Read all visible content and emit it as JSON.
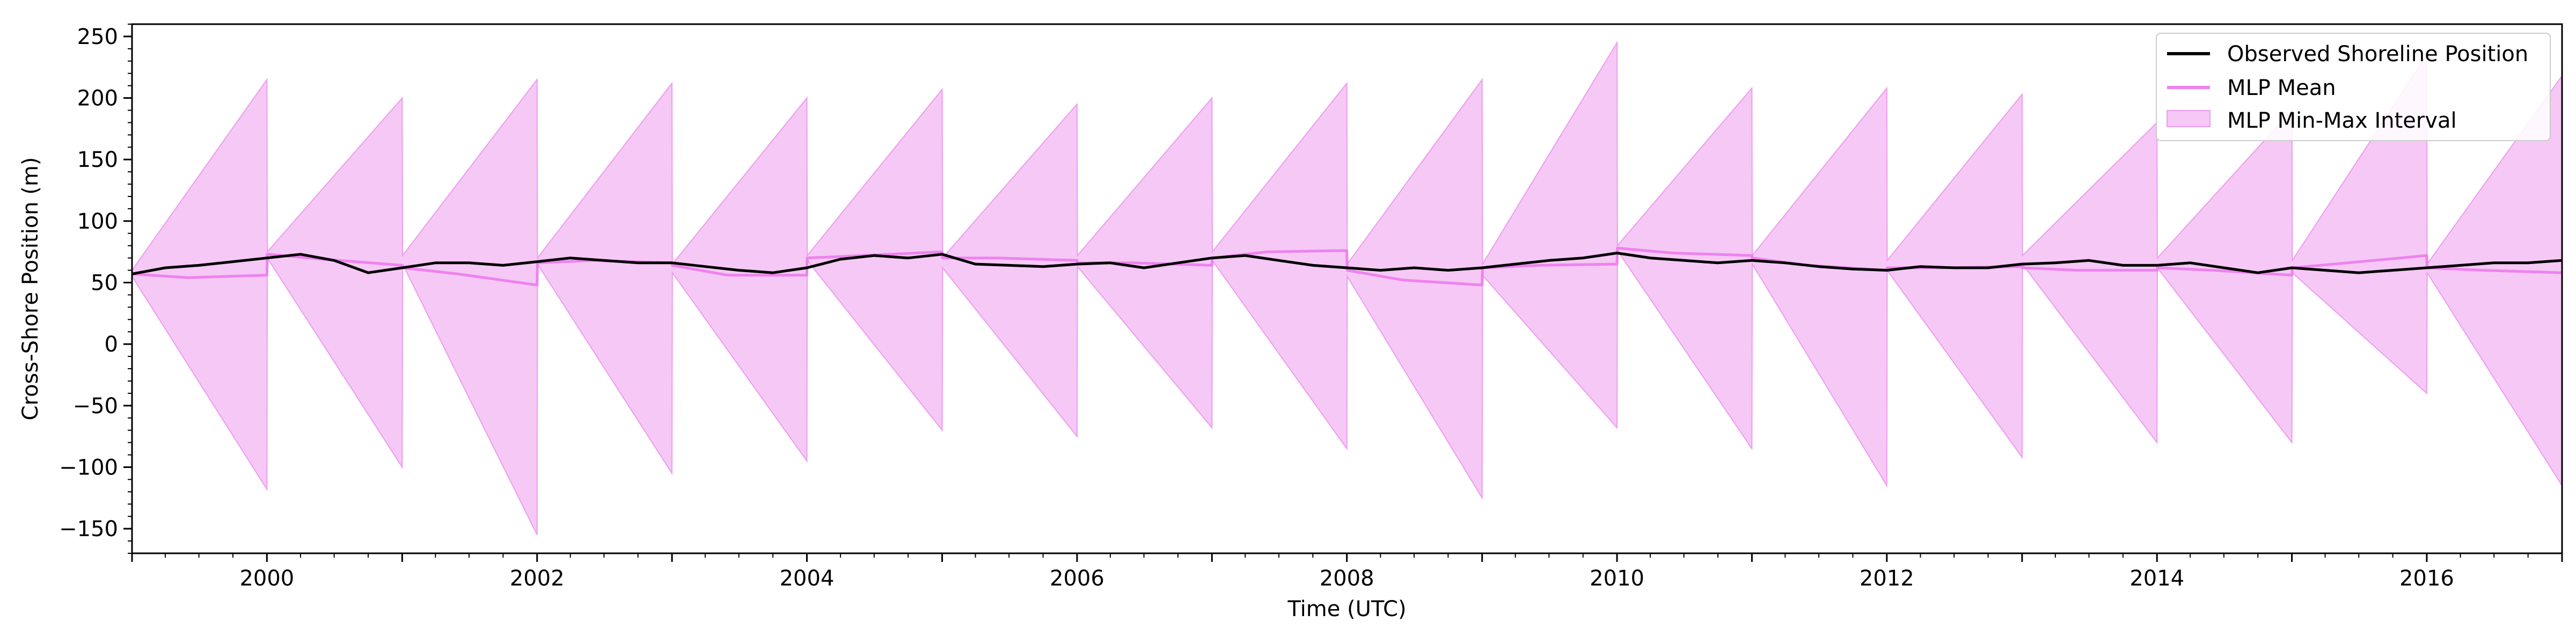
{
  "chart_data": {
    "type": "line",
    "xlabel": "Time (UTC)",
    "ylabel": "Cross-Shore Position (m)",
    "xlim": [
      "1999-01-01",
      "2017-01-01"
    ],
    "ylim": [
      -170,
      260
    ],
    "x_ticks": [
      "2000",
      "2002",
      "2004",
      "2006",
      "2008",
      "2010",
      "2012",
      "2014",
      "2016"
    ],
    "y_ticks": [
      -150,
      -100,
      -50,
      0,
      50,
      100,
      150,
      200,
      250
    ],
    "grid": false,
    "legend_position": "top-right",
    "colors": {
      "observed": "#000000",
      "mean": "#ee82ee",
      "interval_fill": "#f5c8f5",
      "interval_edge": "#ee9cee"
    },
    "series": [
      {
        "name": "Observed Shoreline Position",
        "type": "line",
        "x": [
          "1999-01-01",
          "1999-04-01",
          "1999-07-01",
          "1999-10-01",
          "2000-01-01",
          "2000-04-01",
          "2000-07-01",
          "2000-10-01",
          "2001-01-01",
          "2001-04-01",
          "2001-07-01",
          "2001-10-01",
          "2002-01-01",
          "2002-04-01",
          "2002-07-01",
          "2002-10-01",
          "2003-01-01",
          "2003-04-01",
          "2003-07-01",
          "2003-10-01",
          "2004-01-01",
          "2004-04-01",
          "2004-07-01",
          "2004-10-01",
          "2005-01-01",
          "2005-04-01",
          "2005-07-01",
          "2005-10-01",
          "2006-01-01",
          "2006-04-01",
          "2006-07-01",
          "2006-10-01",
          "2007-01-01",
          "2007-04-01",
          "2007-07-01",
          "2007-10-01",
          "2008-01-01",
          "2008-04-01",
          "2008-07-01",
          "2008-10-01",
          "2009-01-01",
          "2009-04-01",
          "2009-07-01",
          "2009-10-01",
          "2010-01-01",
          "2010-04-01",
          "2010-07-01",
          "2010-10-01",
          "2011-01-01",
          "2011-04-01",
          "2011-07-01",
          "2011-10-01",
          "2012-01-01",
          "2012-04-01",
          "2012-07-01",
          "2012-10-01",
          "2013-01-01",
          "2013-04-01",
          "2013-07-01",
          "2013-10-01",
          "2014-01-01",
          "2014-04-01",
          "2014-07-01",
          "2014-10-01",
          "2015-01-01",
          "2015-04-01",
          "2015-07-01",
          "2015-10-01",
          "2016-01-01",
          "2016-04-01",
          "2016-07-01",
          "2016-10-01",
          "2017-01-01"
        ],
        "y": [
          57,
          62,
          64,
          67,
          70,
          73,
          68,
          58,
          62,
          66,
          66,
          64,
          67,
          70,
          68,
          66,
          66,
          63,
          60,
          58,
          62,
          69,
          72,
          70,
          73,
          65,
          64,
          63,
          65,
          66,
          62,
          66,
          70,
          72,
          68,
          64,
          62,
          60,
          62,
          60,
          62,
          65,
          68,
          70,
          74,
          70,
          68,
          66,
          68,
          66,
          63,
          61,
          60,
          63,
          62,
          62,
          65,
          66,
          68,
          64,
          64,
          66,
          62,
          58,
          62,
          60,
          58,
          60,
          62,
          64,
          66,
          66,
          68
        ]
      },
      {
        "name": "MLP Mean",
        "type": "line",
        "x": [
          "1999-01-01",
          "1999-06-01",
          "2000-01-01",
          "2000-01-02",
          "2000-06-01",
          "2001-01-01",
          "2001-01-02",
          "2001-06-01",
          "2002-01-01",
          "2002-01-02",
          "2002-06-01",
          "2003-01-01",
          "2003-01-02",
          "2003-06-01",
          "2004-01-01",
          "2004-01-02",
          "2004-06-01",
          "2005-01-01",
          "2005-01-02",
          "2005-06-01",
          "2006-01-01",
          "2006-01-02",
          "2006-06-01",
          "2007-01-01",
          "2007-01-02",
          "2007-06-01",
          "2008-01-01",
          "2008-01-02",
          "2008-06-01",
          "2009-01-01",
          "2009-01-02",
          "2009-06-01",
          "2010-01-01",
          "2010-01-02",
          "2010-06-01",
          "2011-01-01",
          "2011-01-02",
          "2011-06-01",
          "2012-01-01",
          "2012-01-02",
          "2012-06-01",
          "2013-01-01",
          "2013-01-02",
          "2013-06-01",
          "2014-01-01",
          "2014-01-02",
          "2014-06-01",
          "2015-01-01",
          "2015-01-02",
          "2015-06-01",
          "2016-01-01",
          "2016-01-02",
          "2016-06-01",
          "2017-01-01"
        ],
        "y": [
          57,
          54,
          56,
          73,
          69,
          64,
          62,
          57,
          48,
          66,
          68,
          66,
          64,
          56,
          56,
          70,
          72,
          75,
          70,
          70,
          68,
          66,
          66,
          64,
          70,
          75,
          76,
          60,
          52,
          48,
          62,
          64,
          65,
          78,
          74,
          72,
          70,
          64,
          60,
          62,
          62,
          63,
          62,
          60,
          60,
          62,
          60,
          56,
          62,
          66,
          72,
          62,
          60,
          58
        ]
      },
      {
        "name": "MLP Min-Max Interval",
        "type": "area",
        "x": [
          "1999-01-01",
          "2000-01-01",
          "2000-01-02",
          "2001-01-01",
          "2001-01-02",
          "2002-01-01",
          "2002-01-02",
          "2003-01-01",
          "2003-01-02",
          "2004-01-01",
          "2004-01-02",
          "2005-01-01",
          "2005-01-02",
          "2006-01-01",
          "2006-01-02",
          "2007-01-01",
          "2007-01-02",
          "2008-01-01",
          "2008-01-02",
          "2009-01-01",
          "2009-01-02",
          "2010-01-01",
          "2010-01-02",
          "2011-01-01",
          "2011-01-02",
          "2012-01-01",
          "2012-01-02",
          "2013-01-01",
          "2013-01-02",
          "2014-01-01",
          "2014-01-02",
          "2015-01-01",
          "2015-01-02",
          "2016-01-01",
          "2016-01-02",
          "2017-01-01"
        ],
        "upper": [
          60,
          215,
          75,
          200,
          72,
          215,
          70,
          212,
          65,
          200,
          72,
          207,
          70,
          195,
          72,
          200,
          75,
          212,
          65,
          215,
          65,
          245,
          80,
          208,
          72,
          208,
          68,
          203,
          72,
          180,
          70,
          190,
          68,
          235,
          65,
          218
        ],
        "lower": [
          55,
          -118,
          70,
          -100,
          65,
          -155,
          65,
          -105,
          58,
          -95,
          68,
          -70,
          62,
          -75,
          63,
          -68,
          68,
          -85,
          55,
          -125,
          56,
          -68,
          76,
          -85,
          65,
          -115,
          60,
          -92,
          65,
          -80,
          62,
          -80,
          58,
          -40,
          58,
          -115
        ]
      }
    ]
  }
}
